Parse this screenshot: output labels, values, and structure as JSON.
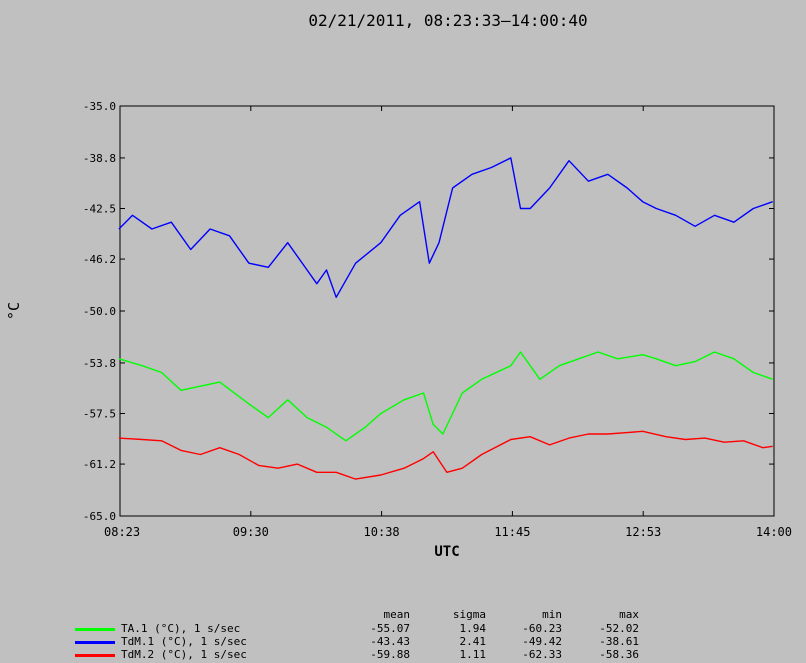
{
  "chart_data": {
    "type": "line",
    "title": "02/21/2011, 08:23:33–14:00:40",
    "xlabel": "UTC",
    "ylabel": "°C",
    "x_ticks": [
      "08:23",
      "09:30",
      "10:38",
      "11:45",
      "12:53",
      "14:00"
    ],
    "y_ticks": [
      "-35.0",
      "-38.8",
      "-42.5",
      "-46.2",
      "-50.0",
      "-53.8",
      "-57.5",
      "-61.2",
      "-65.0"
    ],
    "ylim": [
      -65.0,
      -35.0
    ],
    "x_range": [
      "08:23:33",
      "14:00:40"
    ],
    "grid": false,
    "series": [
      {
        "name": "TA.1 (°C), 1 s/sec",
        "color": "#00ff00",
        "x": [
          "08:23",
          "08:35",
          "08:45",
          "08:55",
          "09:05",
          "09:15",
          "09:30",
          "09:40",
          "09:50",
          "10:00",
          "10:10",
          "10:20",
          "10:30",
          "10:38",
          "10:50",
          "11:00",
          "11:05",
          "11:10",
          "11:20",
          "11:30",
          "11:45",
          "11:50",
          "12:00",
          "12:10",
          "12:20",
          "12:30",
          "12:40",
          "12:53",
          "13:00",
          "13:10",
          "13:20",
          "13:30",
          "13:40",
          "13:50",
          "14:00"
        ],
        "values": [
          -53.5,
          -54.0,
          -54.5,
          -55.8,
          -55.5,
          -55.2,
          -56.8,
          -57.8,
          -56.5,
          -57.8,
          -58.5,
          -59.5,
          -58.5,
          -57.5,
          -56.5,
          -56.0,
          -58.3,
          -59.0,
          -56.0,
          -55.0,
          -54.0,
          -53.0,
          -55.0,
          -54.0,
          -53.5,
          -53.0,
          -53.5,
          -53.2,
          -53.5,
          -54.0,
          -53.7,
          -53.0,
          -53.5,
          -54.5,
          -55.0
        ]
      },
      {
        "name": "TdM.1 (°C), 1 s/sec",
        "color": "#0000ff",
        "x": [
          "08:23",
          "08:30",
          "08:40",
          "08:50",
          "09:00",
          "09:10",
          "09:20",
          "09:30",
          "09:40",
          "09:50",
          "10:00",
          "10:05",
          "10:10",
          "10:15",
          "10:25",
          "10:38",
          "10:48",
          "10:58",
          "11:03",
          "11:08",
          "11:15",
          "11:25",
          "11:35",
          "11:45",
          "11:50",
          "11:55",
          "12:05",
          "12:15",
          "12:25",
          "12:35",
          "12:45",
          "12:53",
          "13:00",
          "13:10",
          "13:20",
          "13:30",
          "13:40",
          "13:50",
          "14:00"
        ],
        "values": [
          -44.0,
          -43.0,
          -44.0,
          -43.5,
          -45.5,
          -44.0,
          -44.5,
          -46.5,
          -46.8,
          -45.0,
          -47.0,
          -48.0,
          -47.0,
          -49.0,
          -46.5,
          -45.0,
          -43.0,
          -42.0,
          -46.5,
          -45.0,
          -41.0,
          -40.0,
          -39.5,
          -38.8,
          -42.5,
          -42.5,
          -41.0,
          -39.0,
          -40.5,
          -40.0,
          -41.0,
          -42.0,
          -42.5,
          -43.0,
          -43.8,
          -43.0,
          -43.5,
          -42.5,
          -42.0
        ]
      },
      {
        "name": "TdM.2 (°C), 1 s/sec",
        "color": "#ff0000",
        "x": [
          "08:23",
          "08:35",
          "08:45",
          "08:55",
          "09:05",
          "09:15",
          "09:25",
          "09:35",
          "09:45",
          "09:55",
          "10:05",
          "10:15",
          "10:25",
          "10:38",
          "10:50",
          "11:00",
          "11:05",
          "11:12",
          "11:20",
          "11:30",
          "11:45",
          "11:55",
          "12:05",
          "12:15",
          "12:25",
          "12:35",
          "12:45",
          "12:53",
          "13:05",
          "13:15",
          "13:25",
          "13:35",
          "13:45",
          "13:55",
          "14:00"
        ],
        "values": [
          -59.3,
          -59.4,
          -59.5,
          -60.2,
          -60.5,
          -60.0,
          -60.5,
          -61.3,
          -61.5,
          -61.2,
          -61.8,
          -61.8,
          -62.3,
          -62.0,
          -61.5,
          -60.8,
          -60.3,
          -61.8,
          -61.5,
          -60.5,
          -59.4,
          -59.2,
          -59.8,
          -59.3,
          -59.0,
          -59.0,
          -58.9,
          -58.8,
          -59.2,
          -59.4,
          -59.3,
          -59.6,
          -59.5,
          -60.0,
          -59.9
        ]
      }
    ]
  },
  "stats": {
    "headers": {
      "mean": "mean",
      "sigma": "sigma",
      "min": "min",
      "max": "max"
    },
    "rows": [
      {
        "label": "TA.1 (°C), 1 s/sec",
        "color": "#00ff00",
        "mean": "-55.07",
        "sigma": "1.94",
        "min": "-60.23",
        "max": "-52.02"
      },
      {
        "label": "TdM.1 (°C), 1 s/sec",
        "color": "#0000ff",
        "mean": "-43.43",
        "sigma": "2.41",
        "min": "-49.42",
        "max": "-38.61"
      },
      {
        "label": "TdM.2 (°C), 1 s/sec",
        "color": "#ff0000",
        "mean": "-59.88",
        "sigma": "1.11",
        "min": "-62.33",
        "max": "-58.36"
      }
    ]
  }
}
